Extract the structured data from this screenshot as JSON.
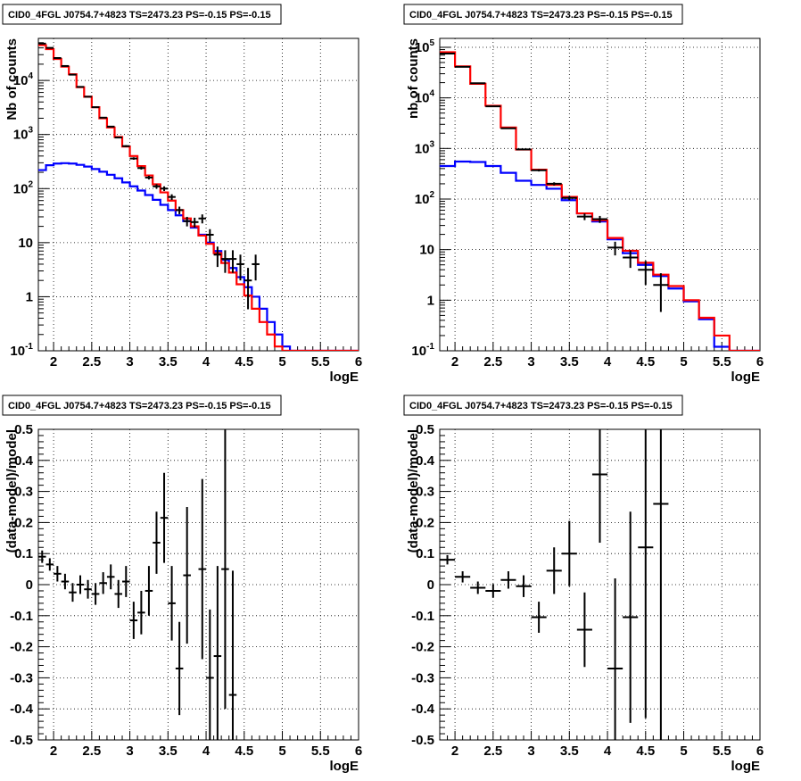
{
  "colors": {
    "total": "#ff0000",
    "background": "#0000ff",
    "data": "#000000",
    "grid": "#000000"
  },
  "chart_data": [
    {
      "type": "line",
      "title": "CID0_4FGL J0754.7+4823 TS=2473.23 PS=-0.15 PS=-0.15",
      "xlabel": "logE",
      "ylabel": "Nb of counts",
      "xlim": [
        1.8,
        6.0
      ],
      "ylim": [
        0.1,
        60000
      ],
      "log_y": true,
      "grid": true,
      "x_ticks": [
        "2",
        "2.5",
        "3",
        "3.5",
        "4",
        "4.5",
        "5",
        "5.5",
        "6"
      ],
      "y_ticks": [
        "10^-1",
        "1",
        "10",
        "10^2",
        "10^3",
        "10^4"
      ],
      "bin_width": 0.1,
      "bin_edges_start": 1.8,
      "series": [
        {
          "values": [
            45000,
            38000,
            25000,
            18000,
            13000,
            7500,
            5000,
            3200,
            2000,
            1350,
            900,
            600,
            400,
            260,
            175,
            120,
            85,
            60,
            40,
            28,
            20,
            13.5,
            9.5,
            6.4,
            4.2,
            2.8,
            1.7,
            1.05,
            0.6,
            0.34,
            0.2,
            0.12,
            0.1,
            0.1,
            0.1,
            0.1,
            0.1,
            0.1,
            0.1,
            0.1,
            0.1,
            0.1
          ]
        },
        {
          "values": [
            220,
            270,
            290,
            295,
            290,
            275,
            255,
            230,
            205,
            180,
            155,
            130,
            110,
            92,
            76,
            62,
            50,
            40,
            32,
            25,
            19,
            14,
            10,
            7,
            4.8,
            3.4,
            2.3,
            1.5,
            1.0,
            0.6,
            0.34,
            0.2,
            0.12,
            0.1,
            0.1,
            0.1,
            0.1,
            0.1,
            0.1,
            0.1,
            0.1,
            0.1
          ]
        }
      ],
      "points": [
        {
          "x": 1.85,
          "y": 48000,
          "yerr": 1.0
        },
        {
          "x": 1.95,
          "y": 40000,
          "yerr": 1.0
        },
        {
          "x": 2.05,
          "y": 26000,
          "yerr": 1.0
        },
        {
          "x": 2.15,
          "y": 18500,
          "yerr": 1.0
        },
        {
          "x": 2.25,
          "y": 12800,
          "yerr": 1.0
        },
        {
          "x": 2.35,
          "y": 7600,
          "yerr": 1.0
        },
        {
          "x": 2.45,
          "y": 5000,
          "yerr": 1.0
        },
        {
          "x": 2.55,
          "y": 3200,
          "yerr": 1.0
        },
        {
          "x": 2.65,
          "y": 2050,
          "yerr": 1.0
        },
        {
          "x": 2.75,
          "y": 1400,
          "yerr": 1.0
        },
        {
          "x": 2.85,
          "y": 880,
          "yerr": 1.0
        },
        {
          "x": 2.95,
          "y": 610,
          "yerr": 1.0
        },
        {
          "x": 3.05,
          "y": 360,
          "yerr": 1.0
        },
        {
          "x": 3.15,
          "y": 240,
          "yerr": 1.0
        },
        {
          "x": 3.25,
          "y": 160,
          "yerr": 1.0
        },
        {
          "x": 3.35,
          "y": 110,
          "yerr": 1.0
        },
        {
          "x": 3.45,
          "y": 100,
          "yerr": 1.0
        },
        {
          "x": 3.55,
          "y": 70,
          "yerr": 1.0
        },
        {
          "x": 3.65,
          "y": 40,
          "yerr": 1.0
        },
        {
          "x": 3.75,
          "y": 25,
          "yerr": 1.0
        },
        {
          "x": 3.85,
          "y": 24,
          "yerr": 1.0
        },
        {
          "x": 3.95,
          "y": 28,
          "yerr": 1.0
        },
        {
          "x": 4.05,
          "y": 14,
          "yerr": 1.0
        },
        {
          "x": 4.15,
          "y": 6,
          "yerr": 1.0
        },
        {
          "x": 4.25,
          "y": 5,
          "yerr": 1.0
        },
        {
          "x": 4.35,
          "y": 5,
          "yerr": 1.0
        },
        {
          "x": 4.45,
          "y": 4,
          "yerr": 1.0
        },
        {
          "x": 4.55,
          "y": 2,
          "yerr": 1.0
        },
        {
          "x": 4.65,
          "y": 4,
          "yerr": 1.0
        }
      ]
    },
    {
      "type": "line",
      "title": "CID0_4FGL J0754.7+4823 TS=2473.23 PS=-0.15 PS=-0.15",
      "xlabel": "logE",
      "ylabel": "nb of counts",
      "xlim": [
        1.8,
        6.0
      ],
      "ylim": [
        0.1,
        150000
      ],
      "log_y": true,
      "grid": true,
      "x_ticks": [
        "2",
        "2.5",
        "3",
        "3.5",
        "4",
        "4.5",
        "5",
        "5.5",
        "6"
      ],
      "y_ticks": [
        "10^-1",
        "1",
        "10",
        "10^2",
        "10^3",
        "10^4",
        "10^5"
      ],
      "bin_width": 0.2,
      "bin_edges_start": 1.8,
      "series": [
        {
          "values": [
            80000,
            42000,
            19000,
            7000,
            2600,
            950,
            380,
            190,
            110,
            52,
            38,
            17,
            9.5,
            5.5,
            3.2,
            1.9,
            1.0,
            0.45,
            0.2,
            0.1,
            0.1
          ]
        },
        {
          "values": [
            450,
            550,
            540,
            450,
            330,
            230,
            190,
            160,
            95,
            52,
            36,
            16,
            8.5,
            5.0,
            3.0,
            1.7,
            0.95,
            0.42,
            0.12,
            0.1,
            0.1
          ]
        }
      ],
      "points": [
        {
          "x": 1.9,
          "y": 75000,
          "yerr": 1.0
        },
        {
          "x": 2.1,
          "y": 41000,
          "yerr": 1.0
        },
        {
          "x": 2.3,
          "y": 19500,
          "yerr": 1.0
        },
        {
          "x": 2.5,
          "y": 6800,
          "yerr": 1.0
        },
        {
          "x": 2.7,
          "y": 2500,
          "yerr": 1.0
        },
        {
          "x": 2.9,
          "y": 960,
          "yerr": 1.0
        },
        {
          "x": 3.1,
          "y": 370,
          "yerr": 1.0
        },
        {
          "x": 3.3,
          "y": 200,
          "yerr": 1.0
        },
        {
          "x": 3.5,
          "y": 105,
          "yerr": 1.0
        },
        {
          "x": 3.7,
          "y": 45,
          "yerr": 1.0
        },
        {
          "x": 3.9,
          "y": 40,
          "yerr": 1.0
        },
        {
          "x": 4.1,
          "y": 11,
          "yerr": 1.0
        },
        {
          "x": 4.3,
          "y": 7,
          "yerr": 1.0
        },
        {
          "x": 4.5,
          "y": 4,
          "yerr": 1.0
        },
        {
          "x": 4.7,
          "y": 2,
          "yerr": 1.0
        }
      ]
    },
    {
      "type": "scatter",
      "title": "CID0_4FGL J0754.7+4823 TS=2473.23 PS=-0.15 PS=-0.15",
      "xlabel": "logE",
      "ylabel": "(data-model)/model",
      "xlim": [
        1.8,
        6.0
      ],
      "ylim": [
        -0.5,
        0.5
      ],
      "log_y": false,
      "grid": true,
      "x_ticks": [
        "2",
        "2.5",
        "3",
        "3.5",
        "4",
        "4.5",
        "5",
        "5.5",
        "6"
      ],
      "y_ticks": [
        "-0.5",
        "-0.4",
        "-0.3",
        "-0.2",
        "-0.1",
        "0",
        "0.1",
        "0.2",
        "0.3",
        "0.4",
        "0.5"
      ],
      "points": [
        {
          "x": 1.85,
          "y": 0.09,
          "yerr": 0.02
        },
        {
          "x": 1.95,
          "y": 0.065,
          "yerr": 0.02
        },
        {
          "x": 2.05,
          "y": 0.035,
          "yerr": 0.025
        },
        {
          "x": 2.15,
          "y": 0.01,
          "yerr": 0.025
        },
        {
          "x": 2.25,
          "y": -0.025,
          "yerr": 0.03
        },
        {
          "x": 2.35,
          "y": 0.0,
          "yerr": 0.03
        },
        {
          "x": 2.45,
          "y": -0.015,
          "yerr": 0.03
        },
        {
          "x": 2.55,
          "y": -0.03,
          "yerr": 0.035
        },
        {
          "x": 2.65,
          "y": 0.005,
          "yerr": 0.035
        },
        {
          "x": 2.75,
          "y": 0.025,
          "yerr": 0.04
        },
        {
          "x": 2.85,
          "y": -0.03,
          "yerr": 0.045
        },
        {
          "x": 2.95,
          "y": 0.01,
          "yerr": 0.05
        },
        {
          "x": 3.05,
          "y": -0.115,
          "yerr": 0.06
        },
        {
          "x": 3.15,
          "y": -0.09,
          "yerr": 0.07
        },
        {
          "x": 3.25,
          "y": -0.02,
          "yerr": 0.08
        },
        {
          "x": 3.35,
          "y": 0.135,
          "yerr": 0.1
        },
        {
          "x": 3.45,
          "y": 0.215,
          "yerr": 0.145
        },
        {
          "x": 3.55,
          "y": -0.06,
          "yerr": 0.12
        },
        {
          "x": 3.65,
          "y": -0.27,
          "yerr": 0.15
        },
        {
          "x": 3.75,
          "y": 0.03,
          "yerr": 0.22
        },
        {
          "x": 3.95,
          "y": 0.05,
          "yerr": 0.29
        },
        {
          "x": 4.05,
          "y": -0.3,
          "yerr": 0.22
        },
        {
          "x": 4.15,
          "y": -0.23,
          "yerr": 0.29
        },
        {
          "x": 4.25,
          "y": 0.05,
          "yerr": 0.45
        },
        {
          "x": 4.35,
          "y": -0.355,
          "yerr": 0.4
        }
      ]
    },
    {
      "type": "scatter",
      "title": "CID0_4FGL J0754.7+4823 TS=2473.23 PS=-0.15 PS=-0.15",
      "xlabel": "logE",
      "ylabel": "(data-model)/model",
      "xlim": [
        1.8,
        6.0
      ],
      "ylim": [
        -0.5,
        0.5
      ],
      "log_y": false,
      "grid": true,
      "x_ticks": [
        "2",
        "2.5",
        "3",
        "3.5",
        "4",
        "4.5",
        "5",
        "5.5",
        "6"
      ],
      "y_ticks": [
        "-0.5",
        "-0.4",
        "-0.3",
        "-0.2",
        "-0.1",
        "0",
        "0.1",
        "0.2",
        "0.3",
        "0.4",
        "0.5"
      ],
      "points": [
        {
          "x": 1.9,
          "y": 0.08,
          "yerr": 0.015
        },
        {
          "x": 2.1,
          "y": 0.025,
          "yerr": 0.018
        },
        {
          "x": 2.3,
          "y": -0.01,
          "yerr": 0.02
        },
        {
          "x": 2.5,
          "y": -0.02,
          "yerr": 0.022
        },
        {
          "x": 2.7,
          "y": 0.015,
          "yerr": 0.028
        },
        {
          "x": 2.9,
          "y": -0.005,
          "yerr": 0.035
        },
        {
          "x": 3.1,
          "y": -0.105,
          "yerr": 0.05
        },
        {
          "x": 3.3,
          "y": 0.045,
          "yerr": 0.075
        },
        {
          "x": 3.5,
          "y": 0.1,
          "yerr": 0.105
        },
        {
          "x": 3.7,
          "y": -0.145,
          "yerr": 0.12
        },
        {
          "x": 3.9,
          "y": 0.355,
          "yerr": 0.22
        },
        {
          "x": 4.1,
          "y": -0.27,
          "yerr": 0.29
        },
        {
          "x": 4.3,
          "y": -0.105,
          "yerr": 0.34
        },
        {
          "x": 4.5,
          "y": 0.12,
          "yerr": 0.55
        },
        {
          "x": 4.7,
          "y": 0.26,
          "yerr": 0.8
        }
      ]
    }
  ]
}
